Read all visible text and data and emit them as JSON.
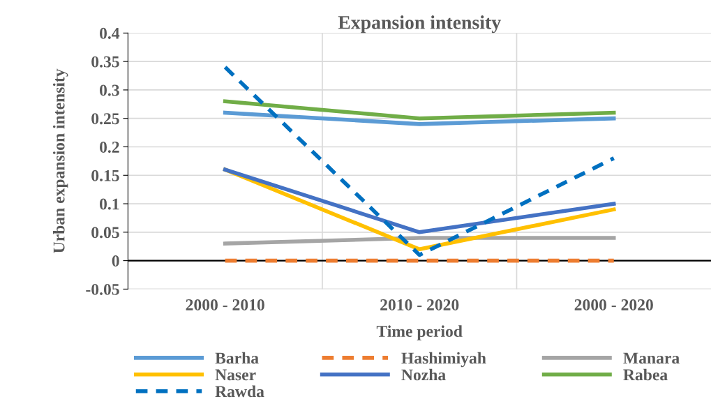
{
  "chart_data": {
    "type": "line",
    "title": "Expansion intensity",
    "xlabel": "Time period",
    "ylabel": "Urban expansion intensity",
    "categories": [
      "2000 - 2010",
      "2010 - 2020",
      "2000 - 2020"
    ],
    "series": [
      {
        "name": "Barha",
        "color": "#5b9bd5",
        "values": [
          0.26,
          0.24,
          0.25
        ]
      },
      {
        "name": "Hashimiyah",
        "color": "#ed7d31",
        "values": [
          0.0,
          0.0,
          0.0
        ],
        "line_style": "dashed"
      },
      {
        "name": "Manara",
        "color": "#a5a5a5",
        "values": [
          0.03,
          0.04,
          0.04
        ]
      },
      {
        "name": "Naser",
        "color": "#ffc000",
        "values": [
          0.16,
          0.02,
          0.09
        ]
      },
      {
        "name": "Nozha",
        "color": "#4472c4",
        "values": [
          0.16,
          0.05,
          0.1
        ]
      },
      {
        "name": "Rabea",
        "color": "#70ad47",
        "values": [
          0.28,
          0.25,
          0.26
        ]
      },
      {
        "name": "Rawda",
        "color": "#0070c0",
        "values": [
          0.34,
          0.01,
          0.18
        ],
        "line_style": "dashed"
      }
    ],
    "ylim": [
      -0.05,
      0.4
    ],
    "yticks": [
      -0.05,
      0,
      0.05,
      0.1,
      0.15,
      0.2,
      0.25,
      0.3,
      0.35,
      0.4
    ],
    "grid": true,
    "legend": "bottom",
    "marker": "none",
    "line_style": "solid"
  }
}
